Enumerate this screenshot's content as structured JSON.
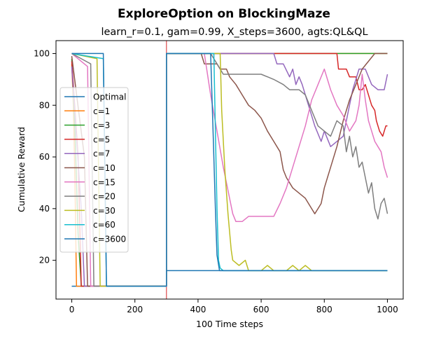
{
  "chart_data": {
    "type": "line",
    "title": "ExploreOption on BlockingMaze",
    "subtitle": "learn_r=0.1, gam=0.99, X_steps=3600, agts:QL&QL",
    "xlabel": "100 Time steps",
    "ylabel": "Cumulative Reward",
    "xlim": [
      -50,
      1050
    ],
    "ylim": [
      5,
      105
    ],
    "xticks": [
      0,
      200,
      400,
      600,
      800,
      1000
    ],
    "yticks": [
      20,
      40,
      60,
      80,
      100
    ],
    "grid": false,
    "legend_position": "center-left",
    "vline": {
      "x": 300,
      "color": "#d62728"
    },
    "series": [
      {
        "name": "Optimal",
        "color": "#1f77b4",
        "points": [
          [
            0,
            10
          ],
          [
            300,
            10
          ],
          [
            300,
            16
          ],
          [
            1000,
            16
          ]
        ]
      },
      {
        "name": "c=1",
        "color": "#ff7f0e",
        "points": [
          [
            0,
            96
          ],
          [
            5,
            80
          ],
          [
            10,
            50
          ],
          [
            15,
            10
          ],
          [
            300,
            10
          ],
          [
            300,
            100
          ],
          [
            1000,
            100
          ]
        ]
      },
      {
        "name": "c=3",
        "color": "#2ca02c",
        "points": [
          [
            0,
            98
          ],
          [
            10,
            70
          ],
          [
            20,
            30
          ],
          [
            30,
            10
          ],
          [
            300,
            10
          ],
          [
            300,
            100
          ],
          [
            1000,
            100
          ]
        ]
      },
      {
        "name": "c=5",
        "color": "#d62728",
        "points": [
          [
            0,
            97
          ],
          [
            20,
            60
          ],
          [
            30,
            10
          ],
          [
            300,
            10
          ],
          [
            300,
            100
          ],
          [
            840,
            100
          ],
          [
            845,
            94
          ],
          [
            870,
            94
          ],
          [
            880,
            91
          ],
          [
            900,
            91
          ],
          [
            910,
            86
          ],
          [
            920,
            86
          ],
          [
            930,
            88
          ],
          [
            950,
            80
          ],
          [
            960,
            78
          ],
          [
            965,
            74
          ],
          [
            975,
            70
          ],
          [
            985,
            68
          ],
          [
            995,
            72
          ],
          [
            1000,
            72
          ]
        ]
      },
      {
        "name": "c=7",
        "color": "#9467bd",
        "points": [
          [
            0,
            95
          ],
          [
            30,
            40
          ],
          [
            40,
            10
          ],
          [
            300,
            10
          ],
          [
            300,
            100
          ],
          [
            640,
            100
          ],
          [
            650,
            96
          ],
          [
            670,
            96
          ],
          [
            690,
            91
          ],
          [
            700,
            94
          ],
          [
            710,
            88
          ],
          [
            720,
            91
          ],
          [
            730,
            88
          ],
          [
            750,
            80
          ],
          [
            770,
            72
          ],
          [
            790,
            66
          ],
          [
            800,
            70
          ],
          [
            820,
            64
          ],
          [
            840,
            66
          ],
          [
            860,
            68
          ],
          [
            880,
            80
          ],
          [
            890,
            86
          ],
          [
            910,
            94
          ],
          [
            930,
            94
          ],
          [
            950,
            88
          ],
          [
            970,
            86
          ],
          [
            990,
            86
          ],
          [
            1000,
            92
          ]
        ]
      },
      {
        "name": "c=10",
        "color": "#8c564b",
        "points": [
          [
            0,
            99
          ],
          [
            40,
            60
          ],
          [
            50,
            10
          ],
          [
            300,
            10
          ],
          [
            300,
            100
          ],
          [
            410,
            100
          ],
          [
            420,
            96
          ],
          [
            460,
            96
          ],
          [
            470,
            94
          ],
          [
            490,
            94
          ],
          [
            500,
            91
          ],
          [
            520,
            88
          ],
          [
            540,
            84
          ],
          [
            560,
            80
          ],
          [
            580,
            78
          ],
          [
            600,
            75
          ],
          [
            620,
            70
          ],
          [
            640,
            66
          ],
          [
            660,
            62
          ],
          [
            670,
            55
          ],
          [
            680,
            52
          ],
          [
            700,
            48
          ],
          [
            720,
            46
          ],
          [
            740,
            44
          ],
          [
            760,
            40
          ],
          [
            770,
            38
          ],
          [
            780,
            40
          ],
          [
            790,
            42
          ],
          [
            800,
            48
          ],
          [
            820,
            56
          ],
          [
            840,
            64
          ],
          [
            860,
            74
          ],
          [
            880,
            82
          ],
          [
            900,
            88
          ],
          [
            920,
            94
          ],
          [
            940,
            97
          ],
          [
            960,
            100
          ],
          [
            1000,
            100
          ]
        ]
      },
      {
        "name": "c=15",
        "color": "#e377c2",
        "points": [
          [
            0,
            100
          ],
          [
            50,
            95
          ],
          [
            60,
            10
          ],
          [
            300,
            10
          ],
          [
            300,
            100
          ],
          [
            420,
            100
          ],
          [
            440,
            84
          ],
          [
            460,
            70
          ],
          [
            480,
            56
          ],
          [
            500,
            44
          ],
          [
            510,
            38
          ],
          [
            520,
            35
          ],
          [
            540,
            35
          ],
          [
            560,
            37
          ],
          [
            600,
            37
          ],
          [
            640,
            37
          ],
          [
            660,
            42
          ],
          [
            680,
            48
          ],
          [
            700,
            56
          ],
          [
            720,
            64
          ],
          [
            740,
            72
          ],
          [
            760,
            82
          ],
          [
            780,
            88
          ],
          [
            800,
            94
          ],
          [
            810,
            90
          ],
          [
            820,
            86
          ],
          [
            840,
            80
          ],
          [
            860,
            76
          ],
          [
            880,
            70
          ],
          [
            900,
            74
          ],
          [
            910,
            80
          ],
          [
            920,
            92
          ],
          [
            930,
            82
          ],
          [
            940,
            74
          ],
          [
            950,
            70
          ],
          [
            960,
            66
          ],
          [
            970,
            64
          ],
          [
            980,
            62
          ],
          [
            990,
            56
          ],
          [
            1000,
            52
          ]
        ]
      },
      {
        "name": "c=20",
        "color": "#7f7f7f",
        "points": [
          [
            0,
            100
          ],
          [
            60,
            96
          ],
          [
            70,
            10
          ],
          [
            300,
            10
          ],
          [
            300,
            100
          ],
          [
            440,
            100
          ],
          [
            460,
            96
          ],
          [
            480,
            92
          ],
          [
            520,
            92
          ],
          [
            600,
            92
          ],
          [
            640,
            90
          ],
          [
            670,
            88
          ],
          [
            690,
            86
          ],
          [
            720,
            86
          ],
          [
            740,
            84
          ],
          [
            760,
            78
          ],
          [
            780,
            72
          ],
          [
            800,
            70
          ],
          [
            820,
            68
          ],
          [
            840,
            74
          ],
          [
            860,
            72
          ],
          [
            870,
            62
          ],
          [
            880,
            68
          ],
          [
            890,
            60
          ],
          [
            900,
            64
          ],
          [
            910,
            56
          ],
          [
            920,
            58
          ],
          [
            930,
            52
          ],
          [
            940,
            46
          ],
          [
            950,
            50
          ],
          [
            960,
            40
          ],
          [
            970,
            36
          ],
          [
            980,
            42
          ],
          [
            990,
            44
          ],
          [
            1000,
            38
          ]
        ]
      },
      {
        "name": "c=30",
        "color": "#bcbd22",
        "points": [
          [
            0,
            100
          ],
          [
            80,
            98
          ],
          [
            90,
            10
          ],
          [
            300,
            10
          ],
          [
            300,
            100
          ],
          [
            470,
            100
          ],
          [
            475,
            78
          ],
          [
            485,
            55
          ],
          [
            495,
            38
          ],
          [
            505,
            24
          ],
          [
            510,
            20
          ],
          [
            530,
            18
          ],
          [
            550,
            20
          ],
          [
            560,
            16
          ],
          [
            580,
            16
          ],
          [
            600,
            16
          ],
          [
            620,
            18
          ],
          [
            640,
            16
          ],
          [
            680,
            16
          ],
          [
            700,
            18
          ],
          [
            720,
            16
          ],
          [
            740,
            18
          ],
          [
            760,
            16
          ],
          [
            1000,
            16
          ]
        ]
      },
      {
        "name": "c=60",
        "color": "#17becf",
        "points": [
          [
            0,
            100
          ],
          [
            100,
            98
          ],
          [
            110,
            10
          ],
          [
            300,
            10
          ],
          [
            300,
            100
          ],
          [
            450,
            100
          ],
          [
            455,
            70
          ],
          [
            460,
            40
          ],
          [
            465,
            20
          ],
          [
            470,
            17
          ],
          [
            480,
            16
          ],
          [
            1000,
            16
          ]
        ]
      },
      {
        "name": "c=3600",
        "color": "#1f77b4",
        "points": [
          [
            0,
            100
          ],
          [
            20,
            100
          ],
          [
            100,
            100
          ],
          [
            110,
            10
          ],
          [
            300,
            10
          ],
          [
            300,
            100
          ],
          [
            440,
            100
          ],
          [
            448,
            68
          ],
          [
            455,
            40
          ],
          [
            460,
            22
          ],
          [
            468,
            16
          ],
          [
            1000,
            16
          ]
        ]
      }
    ]
  }
}
